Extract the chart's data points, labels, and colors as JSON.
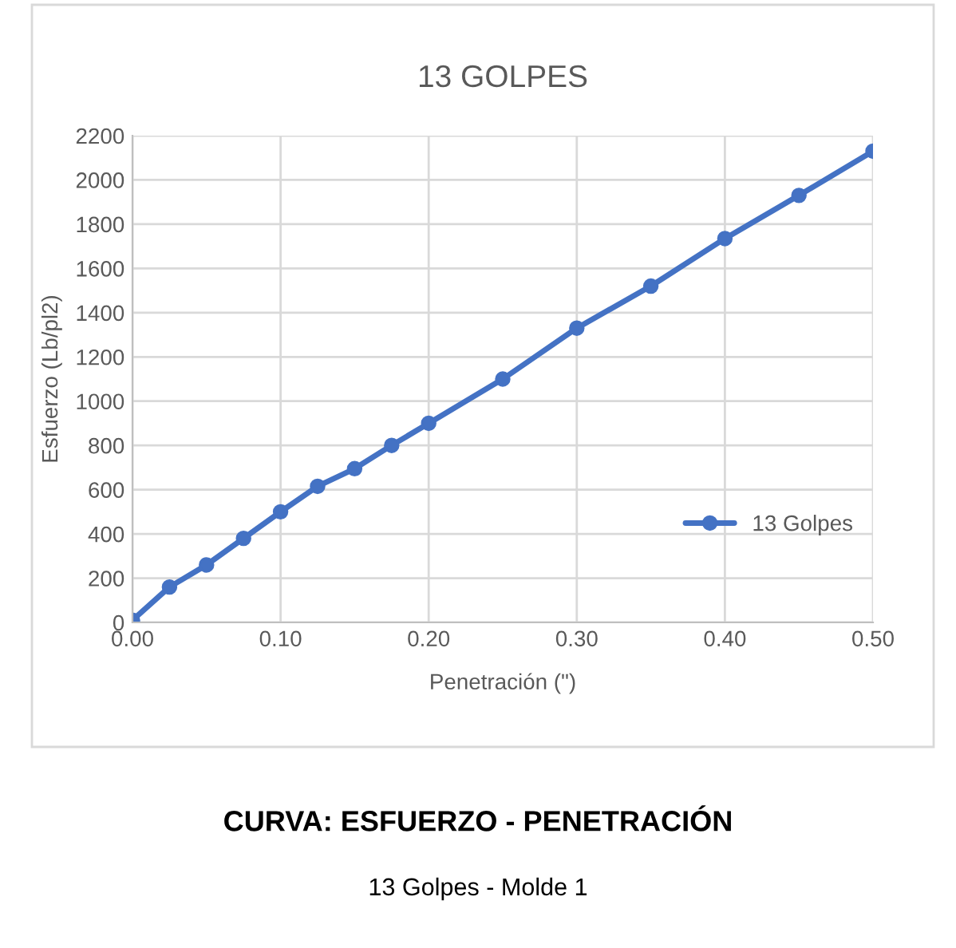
{
  "chart_data": {
    "type": "line",
    "title": "13 GOLPES",
    "xlabel": "Penetración (\")",
    "ylabel": "Esfuerzo (Lb/pl2)",
    "x": [
      0,
      0.025,
      0.05,
      0.075,
      0.1,
      0.125,
      0.15,
      0.175,
      0.2,
      0.25,
      0.3,
      0.35,
      0.4,
      0.45,
      0.5
    ],
    "series": [
      {
        "name": "13 Golpes",
        "color": "#4472c4",
        "values": [
          10,
          160,
          260,
          380,
          500,
          615,
          695,
          800,
          900,
          1100,
          1330,
          1520,
          1735,
          1930,
          2130
        ]
      }
    ],
    "xlim": [
      0,
      0.5
    ],
    "xticks": [
      {
        "value": 0,
        "label": "0.00"
      },
      {
        "value": 0.1,
        "label": "0.10"
      },
      {
        "value": 0.2,
        "label": "0.20"
      },
      {
        "value": 0.3,
        "label": "0.30"
      },
      {
        "value": 0.4,
        "label": "0.40"
      },
      {
        "value": 0.5,
        "label": "0.50"
      }
    ],
    "ylim": [
      0,
      2200
    ],
    "yticks": [
      0,
      200,
      400,
      600,
      800,
      1000,
      1200,
      1400,
      1600,
      1800,
      2000,
      2200
    ],
    "grid": true,
    "legend": "right",
    "marker": "circle",
    "line_style": "solid",
    "annotations": [
      "CURVA: ESFUERZO - PENETRACIÓN",
      "13 Golpes - Molde 1"
    ]
  }
}
